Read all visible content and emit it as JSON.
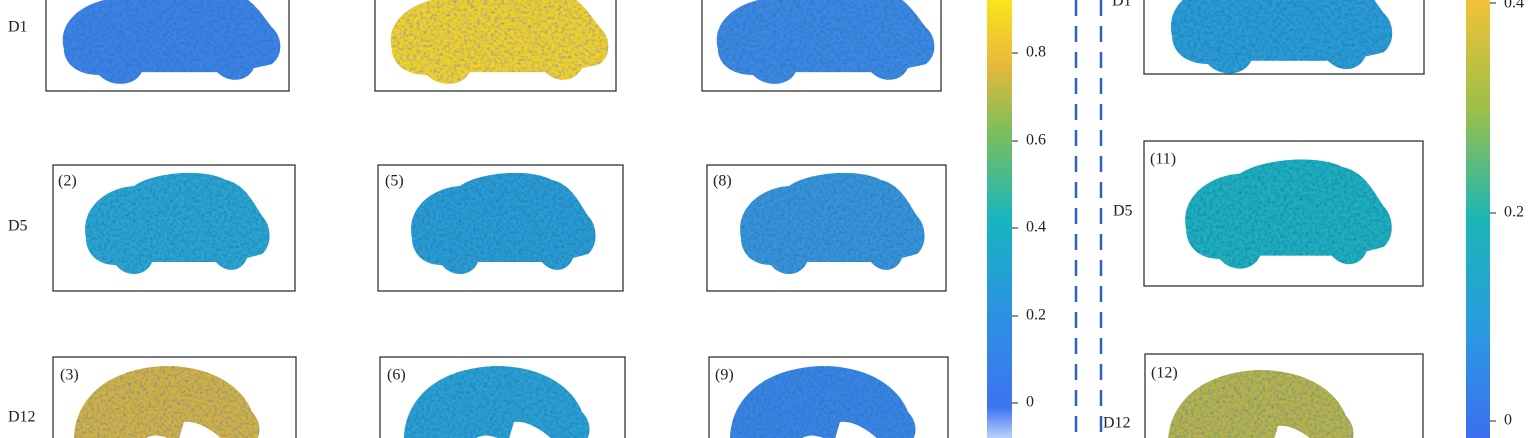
{
  "left": {
    "rows": [
      "D1",
      "D5",
      "D12"
    ],
    "panels": [
      "(2)",
      "(5)",
      "(8)",
      "(3)",
      "(6)",
      "(9)"
    ],
    "colorbar_ticks": [
      "0.8",
      "0.6",
      "0.4",
      "0.2",
      "0"
    ]
  },
  "right": {
    "rows": [
      "D1",
      "D5",
      "D12"
    ],
    "panels": [
      "(11)",
      "(12)"
    ],
    "colorbar_ticks": [
      "0.4",
      "0.2",
      "0"
    ]
  }
}
